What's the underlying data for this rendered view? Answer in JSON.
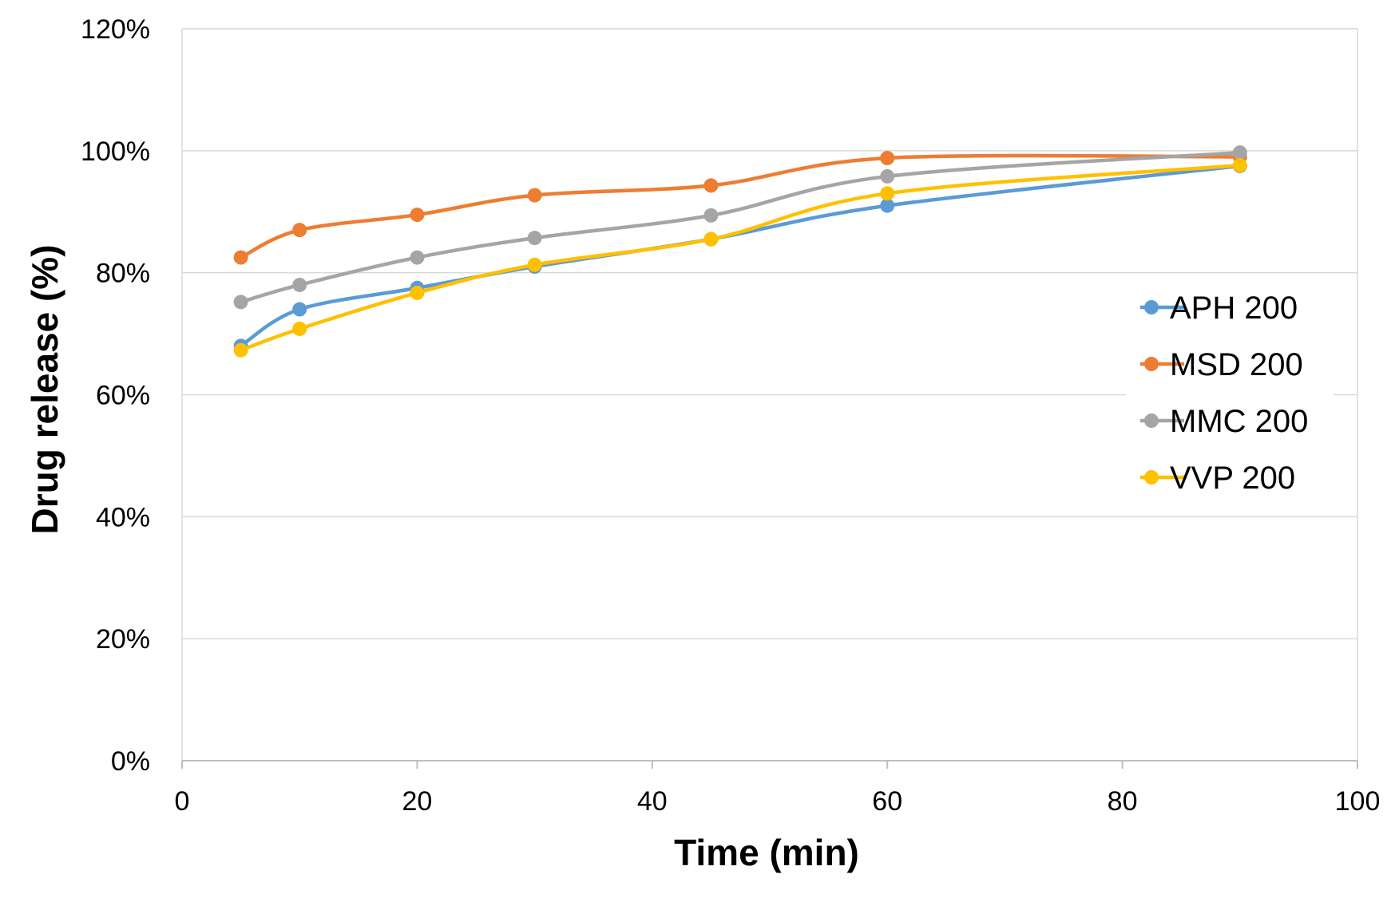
{
  "chart_data": {
    "type": "line",
    "title": "",
    "xlabel": "Time (min)",
    "ylabel": "Drug release (%)",
    "xlim": [
      0,
      100
    ],
    "ylim": [
      0,
      1.2
    ],
    "x_ticks": [
      0,
      20,
      40,
      60,
      80,
      100
    ],
    "y_ticks": [
      0,
      0.2,
      0.4,
      0.6,
      0.8,
      1.0,
      1.2
    ],
    "x_tick_labels": [
      "0",
      "20",
      "40",
      "60",
      "80",
      "100"
    ],
    "y_tick_labels": [
      "0%",
      "20%",
      "40%",
      "60%",
      "80%",
      "100%",
      "120%"
    ],
    "grid": true,
    "legend_position": "right",
    "x": [
      5,
      10,
      20,
      30,
      45,
      60,
      90
    ],
    "series": [
      {
        "name": "APH 200",
        "color": "#5B9BD5",
        "values": [
          0.68,
          0.74,
          0.775,
          0.81,
          0.855,
          0.91,
          0.975
        ]
      },
      {
        "name": "MSD 200",
        "color": "#ED7D31",
        "values": [
          0.825,
          0.87,
          0.895,
          0.927,
          0.943,
          0.988,
          0.99
        ]
      },
      {
        "name": "MMC 200",
        "color": "#A5A5A5",
        "values": [
          0.752,
          0.78,
          0.825,
          0.857,
          0.894,
          0.958,
          0.997
        ]
      },
      {
        "name": "VVP 200",
        "color": "#FFC000",
        "values": [
          0.673,
          0.708,
          0.767,
          0.813,
          0.855,
          0.93,
          0.976
        ]
      }
    ]
  }
}
